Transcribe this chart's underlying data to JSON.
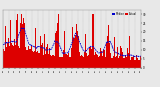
{
  "background_color": "#e8e8e8",
  "plot_bg_color": "#e8e8e8",
  "bar_color": "#dd0000",
  "median_color": "#0000cc",
  "n_minutes": 1440,
  "ylim": [
    0,
    32
  ],
  "yticks": [
    0,
    5,
    10,
    15,
    20,
    25,
    30
  ],
  "seed": 42,
  "n_hours": 24
}
